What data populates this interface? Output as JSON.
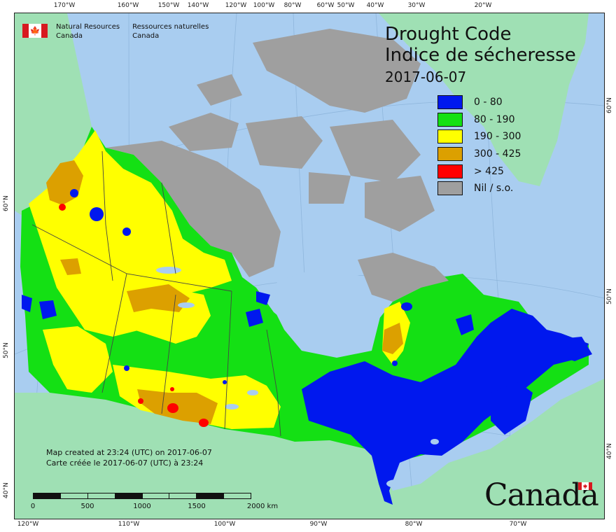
{
  "map": {
    "title_en": "Drought Code",
    "title_fr": "Indice de sécheresse",
    "date": "2017-06-07",
    "legend": [
      {
        "label": "0 - 80",
        "color": "#0018ee"
      },
      {
        "label": "80 - 190",
        "color": "#14e014"
      },
      {
        "label": "190 - 300",
        "color": "#ffff00"
      },
      {
        "label": "300 - 425",
        "color": "#dca000"
      },
      {
        "label": "> 425",
        "color": "#ff0000"
      },
      {
        "label": "Nil / s.o.",
        "color": "#9f9f9f"
      }
    ],
    "colors": {
      "ocean": "#a9cdf0",
      "other_land": "#9fe0b4",
      "canada_nil": "#9f9f9f"
    },
    "dept_en": [
      "Natural Resources",
      "Canada"
    ],
    "dept_fr": [
      "Ressources naturelles",
      "Canada"
    ],
    "credit_en": "Map created at 23:24 (UTC) on 2017-06-07",
    "credit_fr": "Carte créée le 2017-06-07 (UTC) à 23:24",
    "scale_labels": [
      "0",
      "500",
      "1000",
      "1500",
      "2000  km"
    ],
    "wordmark": "Canada",
    "graticule": {
      "top": [
        "170°W",
        "160°W",
        "150°W",
        "140°W",
        "120°W",
        "100°W",
        "80°W",
        "60°W",
        "50°W",
        "40°W",
        "30°W",
        "20°W"
      ],
      "bottom": [
        "120°W",
        "110°W",
        "100°W",
        "90°W",
        "80°W",
        "70°W"
      ],
      "left": [
        "60°N",
        "50°N",
        "40°N"
      ],
      "right": [
        "60°N",
        "50°N",
        "40°N"
      ]
    }
  }
}
